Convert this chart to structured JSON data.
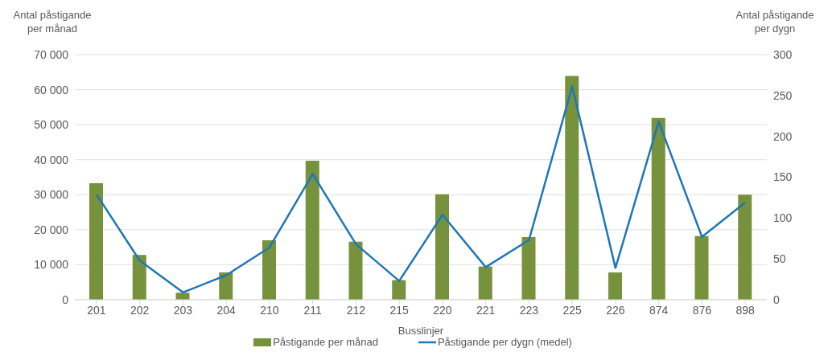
{
  "chart_data": {
    "type": "bar",
    "xlabel": "Busslinjer",
    "ylabel": "Antal påstigande per månad",
    "y2label": "Antal påstigande per dygn",
    "categories": [
      "201",
      "202",
      "203",
      "204",
      "210",
      "211",
      "212",
      "215",
      "220",
      "221",
      "223",
      "225",
      "226",
      "874",
      "876",
      "898"
    ],
    "series": [
      {
        "name": "Påstigande per månad",
        "color": "#76923c",
        "values": [
          33300,
          12800,
          2000,
          7800,
          17000,
          39700,
          16600,
          5600,
          30100,
          9500,
          17900,
          63900,
          7800,
          51900,
          18200,
          30000
        ]
      },
      {
        "name": "Påstigande per dygn (medel)",
        "type": "line",
        "axis": "y2",
        "color": "#1f77b4",
        "values": [
          129,
          48,
          9,
          30,
          64,
          154,
          68,
          23,
          104,
          40,
          73,
          261,
          39,
          218,
          77,
          119
        ]
      }
    ],
    "ylim": [
      0,
      70000
    ],
    "yticks": [
      0,
      {
        "value": 10000,
        "label": "10 000"
      },
      {
        "value": 20000,
        "label": "20 000"
      },
      {
        "value": 30000,
        "label": "30 000"
      },
      {
        "value": 40000,
        "label": "40 000"
      },
      {
        "value": 50000,
        "label": "50 000"
      },
      {
        "value": 60000,
        "label": "60 000"
      },
      {
        "value": 70000,
        "label": "70 000"
      }
    ],
    "y2lim": [
      0,
      300
    ],
    "y2ticks": [
      0,
      50,
      100,
      150,
      200,
      250,
      300
    ],
    "grid": "y",
    "legend": "bottom",
    "marker": "none",
    "line_style": "solid"
  }
}
